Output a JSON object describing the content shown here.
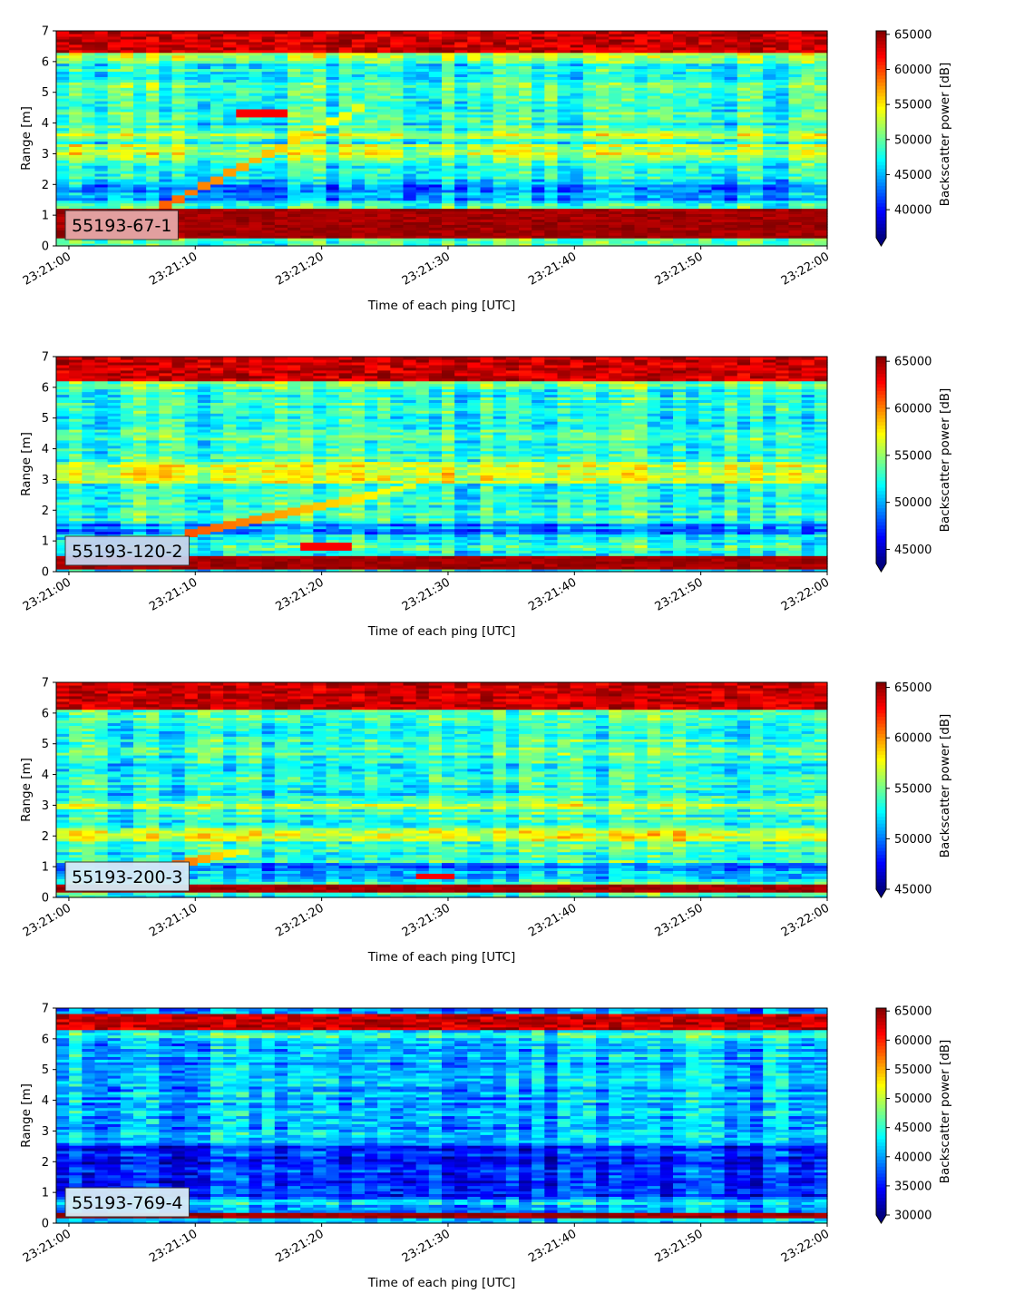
{
  "chart_data": [
    {
      "type": "heatmap",
      "label": "55193-67-1",
      "xlabel": "Time of each ping [UTC]",
      "ylabel": "Range [m]",
      "x_ticks": [
        "23:21:00",
        "23:21:10",
        "23:21:20",
        "23:21:30",
        "23:21:40",
        "23:21:50",
        "23:22:00"
      ],
      "x_range": [
        "23:20:59",
        "23:22:00"
      ],
      "y_ticks": [
        0,
        1,
        2,
        3,
        4,
        5,
        6,
        7
      ],
      "ylim": [
        0,
        7
      ],
      "colorbar_label": "Backscatter power [dB]",
      "colorbar_ticks": [
        40000,
        45000,
        50000,
        55000,
        60000,
        65000
      ],
      "clim": [
        36000,
        65500
      ],
      "colorbar_extend": "min",
      "colormap": "jet",
      "label_box_color": "#e6a8a8",
      "features": {
        "bottom_band": [
          0.25,
          1.2
        ],
        "top_band": [
          6.3,
          7.0
        ],
        "mid_bands": [
          [
            2.8,
            3.3
          ],
          [
            3.5,
            3.7
          ]
        ],
        "dark_band": [
          1.5,
          2.2
        ],
        "diagonal_track": {
          "t_start": "23:21:06",
          "r_start": 1.0,
          "t_end": "23:21:23",
          "r_end": 4.5
        },
        "blob": {
          "t_start": "23:21:13",
          "t_end": "23:21:17",
          "r": 4.35
        }
      }
    },
    {
      "type": "heatmap",
      "label": "55193-120-2",
      "xlabel": "Time of each ping [UTC]",
      "ylabel": "Range [m]",
      "x_ticks": [
        "23:21:00",
        "23:21:10",
        "23:21:20",
        "23:21:30",
        "23:21:40",
        "23:21:50",
        "23:22:00"
      ],
      "x_range": [
        "23:20:59",
        "23:22:00"
      ],
      "y_ticks": [
        0,
        1,
        2,
        3,
        4,
        5,
        6,
        7
      ],
      "ylim": [
        0,
        7
      ],
      "colorbar_label": "Backscatter power [dB]",
      "colorbar_ticks": [
        45000,
        50000,
        55000,
        60000,
        65000
      ],
      "clim": [
        43500,
        65500
      ],
      "colorbar_extend": "min",
      "colormap": "jet",
      "label_box_color": "#c6d2ee",
      "features": {
        "bottom_band": [
          0.1,
          0.55
        ],
        "top_band": [
          6.2,
          7.0
        ],
        "mid_bands": [
          [
            2.9,
            3.6
          ]
        ],
        "dark_band": [
          1.2,
          1.6
        ],
        "diagonal_track": {
          "t_start": "23:21:09",
          "r_start": 1.2,
          "t_end": "23:21:27",
          "r_end": 2.8
        },
        "blob": {
          "t_start": "23:21:18",
          "t_end": "23:21:22",
          "r": 0.8
        }
      }
    },
    {
      "type": "heatmap",
      "label": "55193-200-3",
      "xlabel": "Time of each ping [UTC]",
      "ylabel": "Range [m]",
      "x_ticks": [
        "23:21:00",
        "23:21:10",
        "23:21:20",
        "23:21:30",
        "23:21:40",
        "23:21:50",
        "23:22:00"
      ],
      "x_range": [
        "23:20:59",
        "23:22:00"
      ],
      "y_ticks": [
        0,
        1,
        2,
        3,
        4,
        5,
        6,
        7
      ],
      "ylim": [
        0,
        7
      ],
      "colorbar_label": "Backscatter power [dB]",
      "colorbar_ticks": [
        45000,
        50000,
        55000,
        60000,
        65000
      ],
      "clim": [
        45000,
        65500
      ],
      "colorbar_extend": "min",
      "colormap": "jet",
      "label_box_color": "#d8ecf6",
      "features": {
        "bottom_band": [
          0.15,
          0.45
        ],
        "top_band": [
          6.1,
          7.0
        ],
        "mid_bands": [
          [
            1.8,
            2.3
          ],
          [
            2.9,
            3.1
          ]
        ],
        "dark_band": [
          0.6,
          1.1
        ],
        "diagonal_track": {
          "t_start": "23:21:08",
          "r_start": 1.1,
          "t_end": "23:21:14",
          "r_end": 1.5
        },
        "blob": {
          "t_start": "23:21:27",
          "t_end": "23:21:31",
          "r": 0.7
        }
      }
    },
    {
      "type": "heatmap",
      "label": "55193-769-4",
      "xlabel": "Time of each ping [UTC]",
      "ylabel": "Range [m]",
      "x_ticks": [
        "23:21:00",
        "23:21:10",
        "23:21:20",
        "23:21:30",
        "23:21:40",
        "23:21:50",
        "23:22:00"
      ],
      "x_range": [
        "23:20:59",
        "23:22:00"
      ],
      "y_ticks": [
        0,
        1,
        2,
        3,
        4,
        5,
        6,
        7
      ],
      "ylim": [
        0,
        7
      ],
      "colorbar_label": "Backscatter power [dB]",
      "colorbar_ticks": [
        30000,
        35000,
        40000,
        45000,
        50000,
        55000,
        60000,
        65000
      ],
      "clim": [
        30000,
        65500
      ],
      "colorbar_extend": "min",
      "colormap": "jet",
      "label_box_color": "#d8ecf6",
      "features": {
        "bottom_band": [
          0.15,
          0.35
        ],
        "top_band": [
          6.3,
          6.8
        ],
        "mid_bands": [],
        "dark_band": [
          0.8,
          2.5
        ],
        "diagonal_track": null,
        "blob": null
      }
    }
  ]
}
